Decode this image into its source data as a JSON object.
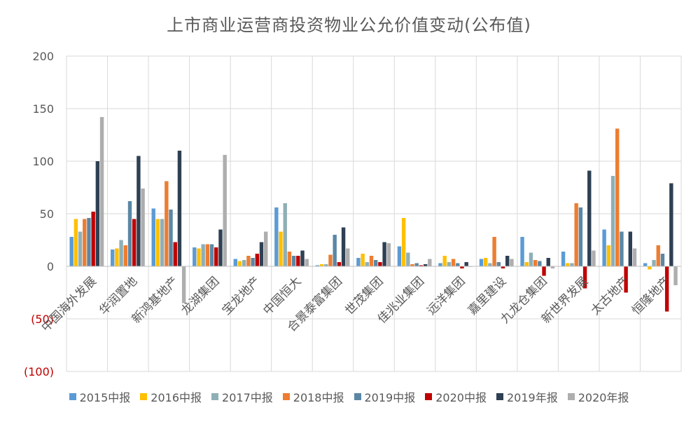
{
  "chart_data": {
    "type": "bar",
    "title": "上市商业运营商投资物业公允价值变动(公布值)",
    "xlabel": "",
    "ylabel": "",
    "ylim": [
      -100,
      200
    ],
    "yticks": [
      200,
      150,
      100,
      50,
      0,
      -50,
      -100
    ],
    "ytick_labels": [
      "200",
      "150",
      "100",
      "50",
      "0",
      "(50)",
      "(100)"
    ],
    "grid": true,
    "legend_position": "bottom",
    "categories": [
      "中国海外发展",
      "华润置地",
      "新鸿基地产",
      "龙湖集团",
      "宝龙地产",
      "中国恒大",
      "合景泰富集团",
      "世茂集团",
      "佳兆业集团",
      "远洋集团",
      "嘉里建设",
      "九龙仓集团",
      "新世界发展",
      "太古地产",
      "恒隆地产"
    ],
    "series": [
      {
        "name": "2015中报",
        "color": "#5B9BD5",
        "values": [
          28,
          16,
          55,
          18,
          7,
          56,
          1,
          8,
          19,
          3,
          7,
          28,
          14,
          35,
          3
        ]
      },
      {
        "name": "2016中报",
        "color": "#FFC000",
        "values": [
          45,
          17,
          45,
          17,
          5,
          33,
          2,
          12,
          46,
          10,
          8,
          4,
          3,
          20,
          -3
        ]
      },
      {
        "name": "2017中报",
        "color": "#8FAFB6",
        "values": [
          33,
          25,
          45,
          21,
          6,
          60,
          2,
          4,
          13,
          4,
          3,
          13,
          3,
          86,
          6
        ]
      },
      {
        "name": "2018中报",
        "color": "#ED7D31",
        "values": [
          45,
          20,
          81,
          21,
          10,
          14,
          11,
          10,
          2,
          7,
          28,
          6,
          60,
          131,
          20
        ]
      },
      {
        "name": "2019中报",
        "color": "#5B87A5",
        "values": [
          46,
          62,
          54,
          21,
          8,
          10,
          30,
          6,
          3,
          3,
          4,
          5,
          56,
          33,
          12
        ]
      },
      {
        "name": "2020中报",
        "color": "#C00000",
        "values": [
          52,
          45,
          23,
          18,
          12,
          10,
          4,
          4,
          1,
          -2,
          -2,
          -9,
          -21,
          -25,
          -43
        ]
      },
      {
        "name": "2019年报",
        "color": "#2E4053",
        "values": [
          100,
          105,
          110,
          35,
          23,
          15,
          37,
          23,
          2,
          4,
          10,
          8,
          91,
          33,
          79
        ]
      },
      {
        "name": "2020年报",
        "color": "#AEAEAE",
        "values": [
          142,
          74,
          -35,
          106,
          33,
          7,
          17,
          22,
          7,
          0,
          7,
          -2,
          15,
          17,
          -18
        ]
      }
    ]
  }
}
